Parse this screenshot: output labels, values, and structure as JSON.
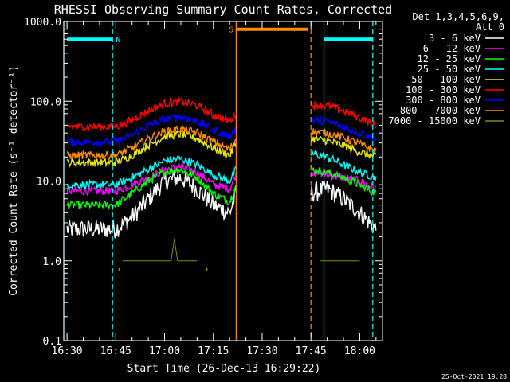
{
  "chart_data": {
    "type": "line",
    "title": "RHESSI Observing Summary Count Rates, Corrected",
    "xlabel": "Start Time (26-Dec-13 16:29:22)",
    "ylabel": "Corrected Count Rate (s⁻¹ detector⁻¹)",
    "y_scale": "log",
    "ylim": [
      0.1,
      1000
    ],
    "xlim": [
      "16:29",
      "18:07"
    ],
    "x_ticks": [
      "16:30",
      "16:45",
      "17:00",
      "17:15",
      "17:30",
      "17:45",
      "18:00"
    ],
    "y_ticks": [
      "0.1",
      "1.0",
      "10.0",
      "100.0",
      "1000.0"
    ],
    "legend_title": [
      "Det 1,3,4,5,6,9,",
      "Att 0"
    ],
    "legend_placement": "right",
    "timestamp": "25-Oct-2021 19:28",
    "gaps": [
      [
        "17:22",
        "17:45"
      ]
    ],
    "series": [
      {
        "name": "3 - 6 keV",
        "color": "#ffffff",
        "x": [
          "16:30",
          "16:45",
          "16:50",
          "16:55",
          "17:00",
          "17:05",
          "17:10",
          "17:15",
          "17:20",
          "17:22",
          "17:45",
          "17:50",
          "17:55",
          "18:00",
          "18:05"
        ],
        "values": [
          2.5,
          2.5,
          3.5,
          6,
          10,
          11,
          8,
          5,
          4,
          7,
          7,
          8,
          6,
          4,
          2.5
        ]
      },
      {
        "name": "6 - 12 keV",
        "color": "#ff00ff",
        "x": [
          "16:30",
          "16:45",
          "16:50",
          "16:55",
          "17:00",
          "17:05",
          "17:10",
          "17:15",
          "17:20",
          "17:22",
          "17:45",
          "17:50",
          "17:55",
          "18:00",
          "18:05"
        ],
        "values": [
          7.5,
          7.5,
          9,
          11,
          14,
          15,
          13,
          9,
          8,
          12,
          13,
          12,
          11,
          10,
          8
        ]
      },
      {
        "name": "12 - 25 keV",
        "color": "#00ff00",
        "x": [
          "16:30",
          "16:45",
          "16:50",
          "16:55",
          "17:00",
          "17:05",
          "17:10",
          "17:15",
          "17:20",
          "17:22",
          "17:45",
          "17:50",
          "17:55",
          "18:00",
          "18:05"
        ],
        "values": [
          5,
          5,
          7,
          10,
          13,
          14,
          11,
          7,
          5.5,
          9,
          14,
          13,
          11,
          9,
          7
        ]
      },
      {
        "name": "25 - 50 keV",
        "color": "#00ffff",
        "x": [
          "16:30",
          "16:45",
          "16:50",
          "16:55",
          "17:00",
          "17:05",
          "17:10",
          "17:15",
          "17:20",
          "17:22",
          "17:45",
          "17:50",
          "17:55",
          "18:00",
          "18:05"
        ],
        "values": [
          9,
          9,
          11,
          14,
          18,
          19,
          16,
          12,
          10,
          14,
          22,
          20,
          16,
          13,
          11
        ]
      },
      {
        "name": "50 - 100 keV",
        "color": "#e8e800",
        "x": [
          "16:30",
          "16:45",
          "16:50",
          "16:55",
          "17:00",
          "17:05",
          "17:10",
          "17:15",
          "17:20",
          "17:22",
          "17:45",
          "17:50",
          "17:55",
          "18:00",
          "18:05"
        ],
        "values": [
          17,
          17,
          21,
          28,
          36,
          39,
          34,
          26,
          21,
          30,
          34,
          32,
          28,
          23,
          20
        ]
      },
      {
        "name": "100 - 300 keV",
        "color": "#ff0000",
        "x": [
          "16:30",
          "16:45",
          "16:50",
          "16:55",
          "17:00",
          "17:05",
          "17:10",
          "17:15",
          "17:20",
          "17:22",
          "17:45",
          "17:50",
          "17:55",
          "18:00",
          "18:05"
        ],
        "values": [
          48,
          48,
          58,
          76,
          94,
          100,
          88,
          68,
          56,
          72,
          90,
          88,
          76,
          62,
          50
        ]
      },
      {
        "name": "300 - 800 keV",
        "color": "#0000ff",
        "x": [
          "16:30",
          "16:45",
          "16:50",
          "16:55",
          "17:00",
          "17:05",
          "17:10",
          "17:15",
          "17:20",
          "17:22",
          "17:45",
          "17:50",
          "17:55",
          "18:00",
          "18:05"
        ],
        "values": [
          31,
          31,
          38,
          50,
          60,
          64,
          57,
          44,
          36,
          48,
          58,
          56,
          48,
          40,
          33
        ]
      },
      {
        "name": "800 - 7000 keV",
        "color": "#ff8c00",
        "x": [
          "16:30",
          "16:45",
          "16:50",
          "16:55",
          "17:00",
          "17:05",
          "17:10",
          "17:15",
          "17:20",
          "17:22",
          "17:45",
          "17:50",
          "17:55",
          "18:00",
          "18:05"
        ],
        "values": [
          21,
          21,
          26,
          34,
          42,
          45,
          40,
          31,
          25,
          34,
          42,
          40,
          35,
          29,
          24
        ]
      },
      {
        "name": "7000 - 15000 keV",
        "color": "#8b8b00",
        "x": [
          "16:47",
          "17:00",
          "17:02",
          "17:03",
          "17:04",
          "17:06",
          "17:10",
          "17:48",
          "17:55",
          "18:00"
        ],
        "values": [
          1.0,
          1.0,
          1.0,
          1.9,
          1.0,
          1.0,
          1.0,
          1.0,
          1.0,
          1.0
        ],
        "dips": [
          [
            "16:46",
            0.75
          ],
          [
            "17:13",
            0.75
          ]
        ]
      }
    ],
    "markers": [
      {
        "type": "solid",
        "x": "16:29",
        "color": "#00ffff"
      },
      {
        "type": "dashed",
        "x": "16:44",
        "color": "#00ffff"
      },
      {
        "type": "solid",
        "x": "17:22",
        "color": "#ff8c00"
      },
      {
        "type": "dashed",
        "x": "17:45",
        "color": "#ff8c00"
      },
      {
        "type": "solid",
        "x": "17:49",
        "color": "#00ffff"
      },
      {
        "type": "dashed",
        "x": "18:04",
        "color": "#00ffff"
      }
    ],
    "flag_bars": [
      {
        "label": "N",
        "x": [
          "16:30",
          "16:44"
        ],
        "y": 600,
        "color": "#00ffff"
      },
      {
        "label": "",
        "x": [
          "17:49",
          "18:04"
        ],
        "y": 600,
        "color": "#00ffff"
      },
      {
        "label": "S",
        "x": [
          "17:22",
          "17:44"
        ],
        "y": 800,
        "color": "#ff8c00"
      }
    ]
  }
}
